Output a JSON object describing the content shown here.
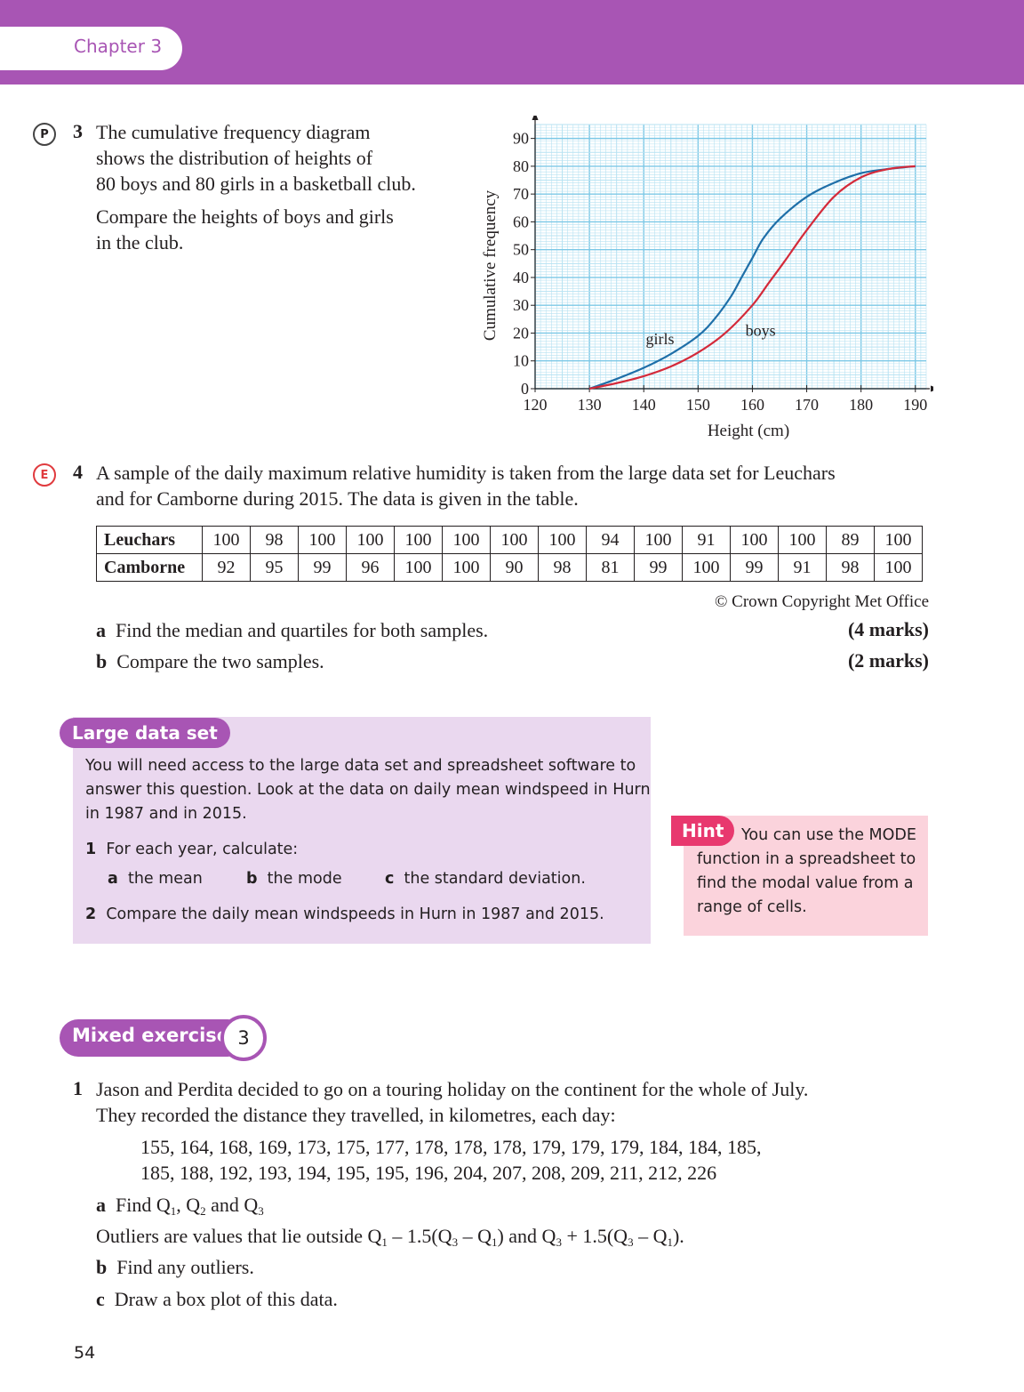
{
  "header": {
    "chapter": "Chapter 3"
  },
  "q3": {
    "marker": "P",
    "number": "3",
    "lines": [
      "The cumulative frequency diagram",
      "shows the distribution of heights of",
      "80 boys and 80 girls in a basketball club."
    ],
    "prompt_lines": [
      "Compare the heights of boys and girls",
      "in the club."
    ]
  },
  "chart_data": {
    "type": "line",
    "xlabel": "Height (cm)",
    "ylabel": "Cumulative frequency",
    "xlim": [
      120,
      192
    ],
    "ylim": [
      0,
      95
    ],
    "x_ticks": [
      "120",
      "130",
      "140",
      "150",
      "160",
      "170",
      "180",
      "190"
    ],
    "y_ticks": [
      "0",
      "10",
      "20",
      "30",
      "40",
      "50",
      "60",
      "70",
      "80",
      "90"
    ],
    "grid": true,
    "series": [
      {
        "name": "girls",
        "color": "#1f6fa8",
        "x": [
          130,
          135,
          140,
          145,
          150,
          153,
          156,
          158,
          160,
          162,
          165,
          170,
          175,
          180,
          185,
          190
        ],
        "y": [
          0,
          3.5,
          7.5,
          12.5,
          19,
          25,
          33,
          40,
          47,
          54,
          61,
          69,
          74,
          77.5,
          79,
          80
        ]
      },
      {
        "name": "boys",
        "color": "#d42a3a",
        "x": [
          130,
          135,
          140,
          145,
          150,
          155,
          160,
          163,
          166,
          170,
          175,
          180,
          185,
          190
        ],
        "y": [
          0,
          2,
          4.5,
          8,
          13,
          20,
          30,
          38,
          46,
          57,
          69,
          76,
          79,
          80
        ]
      }
    ]
  },
  "q4": {
    "marker": "E",
    "number": "4",
    "lines": [
      "A sample of the daily maximum relative humidity is taken from the large data set for Leuchars",
      "and for Camborne during 2015. The data is given in the table."
    ],
    "table": [
      {
        "label": "Leuchars",
        "values": [
          "100",
          "98",
          "100",
          "100",
          "100",
          "100",
          "100",
          "100",
          "94",
          "100",
          "91",
          "100",
          "100",
          "89",
          "100"
        ]
      },
      {
        "label": "Camborne",
        "values": [
          "92",
          "95",
          "99",
          "96",
          "100",
          "100",
          "90",
          "98",
          "81",
          "99",
          "100",
          "99",
          "91",
          "98",
          "100"
        ]
      }
    ],
    "copyright": "© Crown Copyright Met Office",
    "parts": [
      {
        "letter": "a",
        "text": "Find the median and quartiles for both samples.",
        "marks": "(4 marks)"
      },
      {
        "letter": "b",
        "text": "Compare the two samples.",
        "marks": "(2 marks)"
      }
    ]
  },
  "large_data_set": {
    "title": "Large data set",
    "lines": [
      "You will need access to the large data set and spreadsheet software to",
      "answer this question. Look at the data on daily mean windspeed in Hurn",
      "in 1987 and in 2015."
    ],
    "item1": {
      "num": "1",
      "text": "For each year, calculate:"
    },
    "subparts": [
      {
        "letter": "a",
        "text": "the mean"
      },
      {
        "letter": "b",
        "text": "the mode"
      },
      {
        "letter": "c",
        "text": "the standard deviation."
      }
    ],
    "item2": {
      "num": "2",
      "text": "Compare the daily mean windspeeds in Hurn in 1987 and 2015."
    }
  },
  "hint": {
    "title": "Hint",
    "lines": [
      "You can use the MODE",
      "function in a spreadsheet to",
      "find the modal value from a",
      "range of cells."
    ]
  },
  "mixed_exercise": {
    "title": "Mixed exercise",
    "number": "3",
    "q1": {
      "number": "1",
      "lines": [
        "Jason and Perdita decided to go on a touring holiday on the continent for the whole of July.",
        "They recorded the distance they travelled, in kilometres, each day:"
      ],
      "data_lines": [
        "155, 164, 168, 169, 173, 175, 177, 178, 178, 178, 179, 179, 179, 184, 184, 185,",
        "185, 188, 192, 193, 194, 195, 195, 196, 204, 207, 208, 209, 211, 212, 226"
      ],
      "part_a": {
        "letter": "a",
        "text": "Find Q",
        "s1": "1",
        "m1": ", Q",
        "s2": "2",
        "m2": " and Q",
        "s3": "3"
      },
      "outlier_def": "Outliers are values that lie outside Q1 – 1.5(Q3 – Q1) and Q3 + 1.5(Q3 – Q1).",
      "part_b": {
        "letter": "b",
        "text": "Find any outliers."
      },
      "part_c": {
        "letter": "c",
        "text": "Draw a box plot of this data."
      }
    }
  },
  "page_number": "54"
}
